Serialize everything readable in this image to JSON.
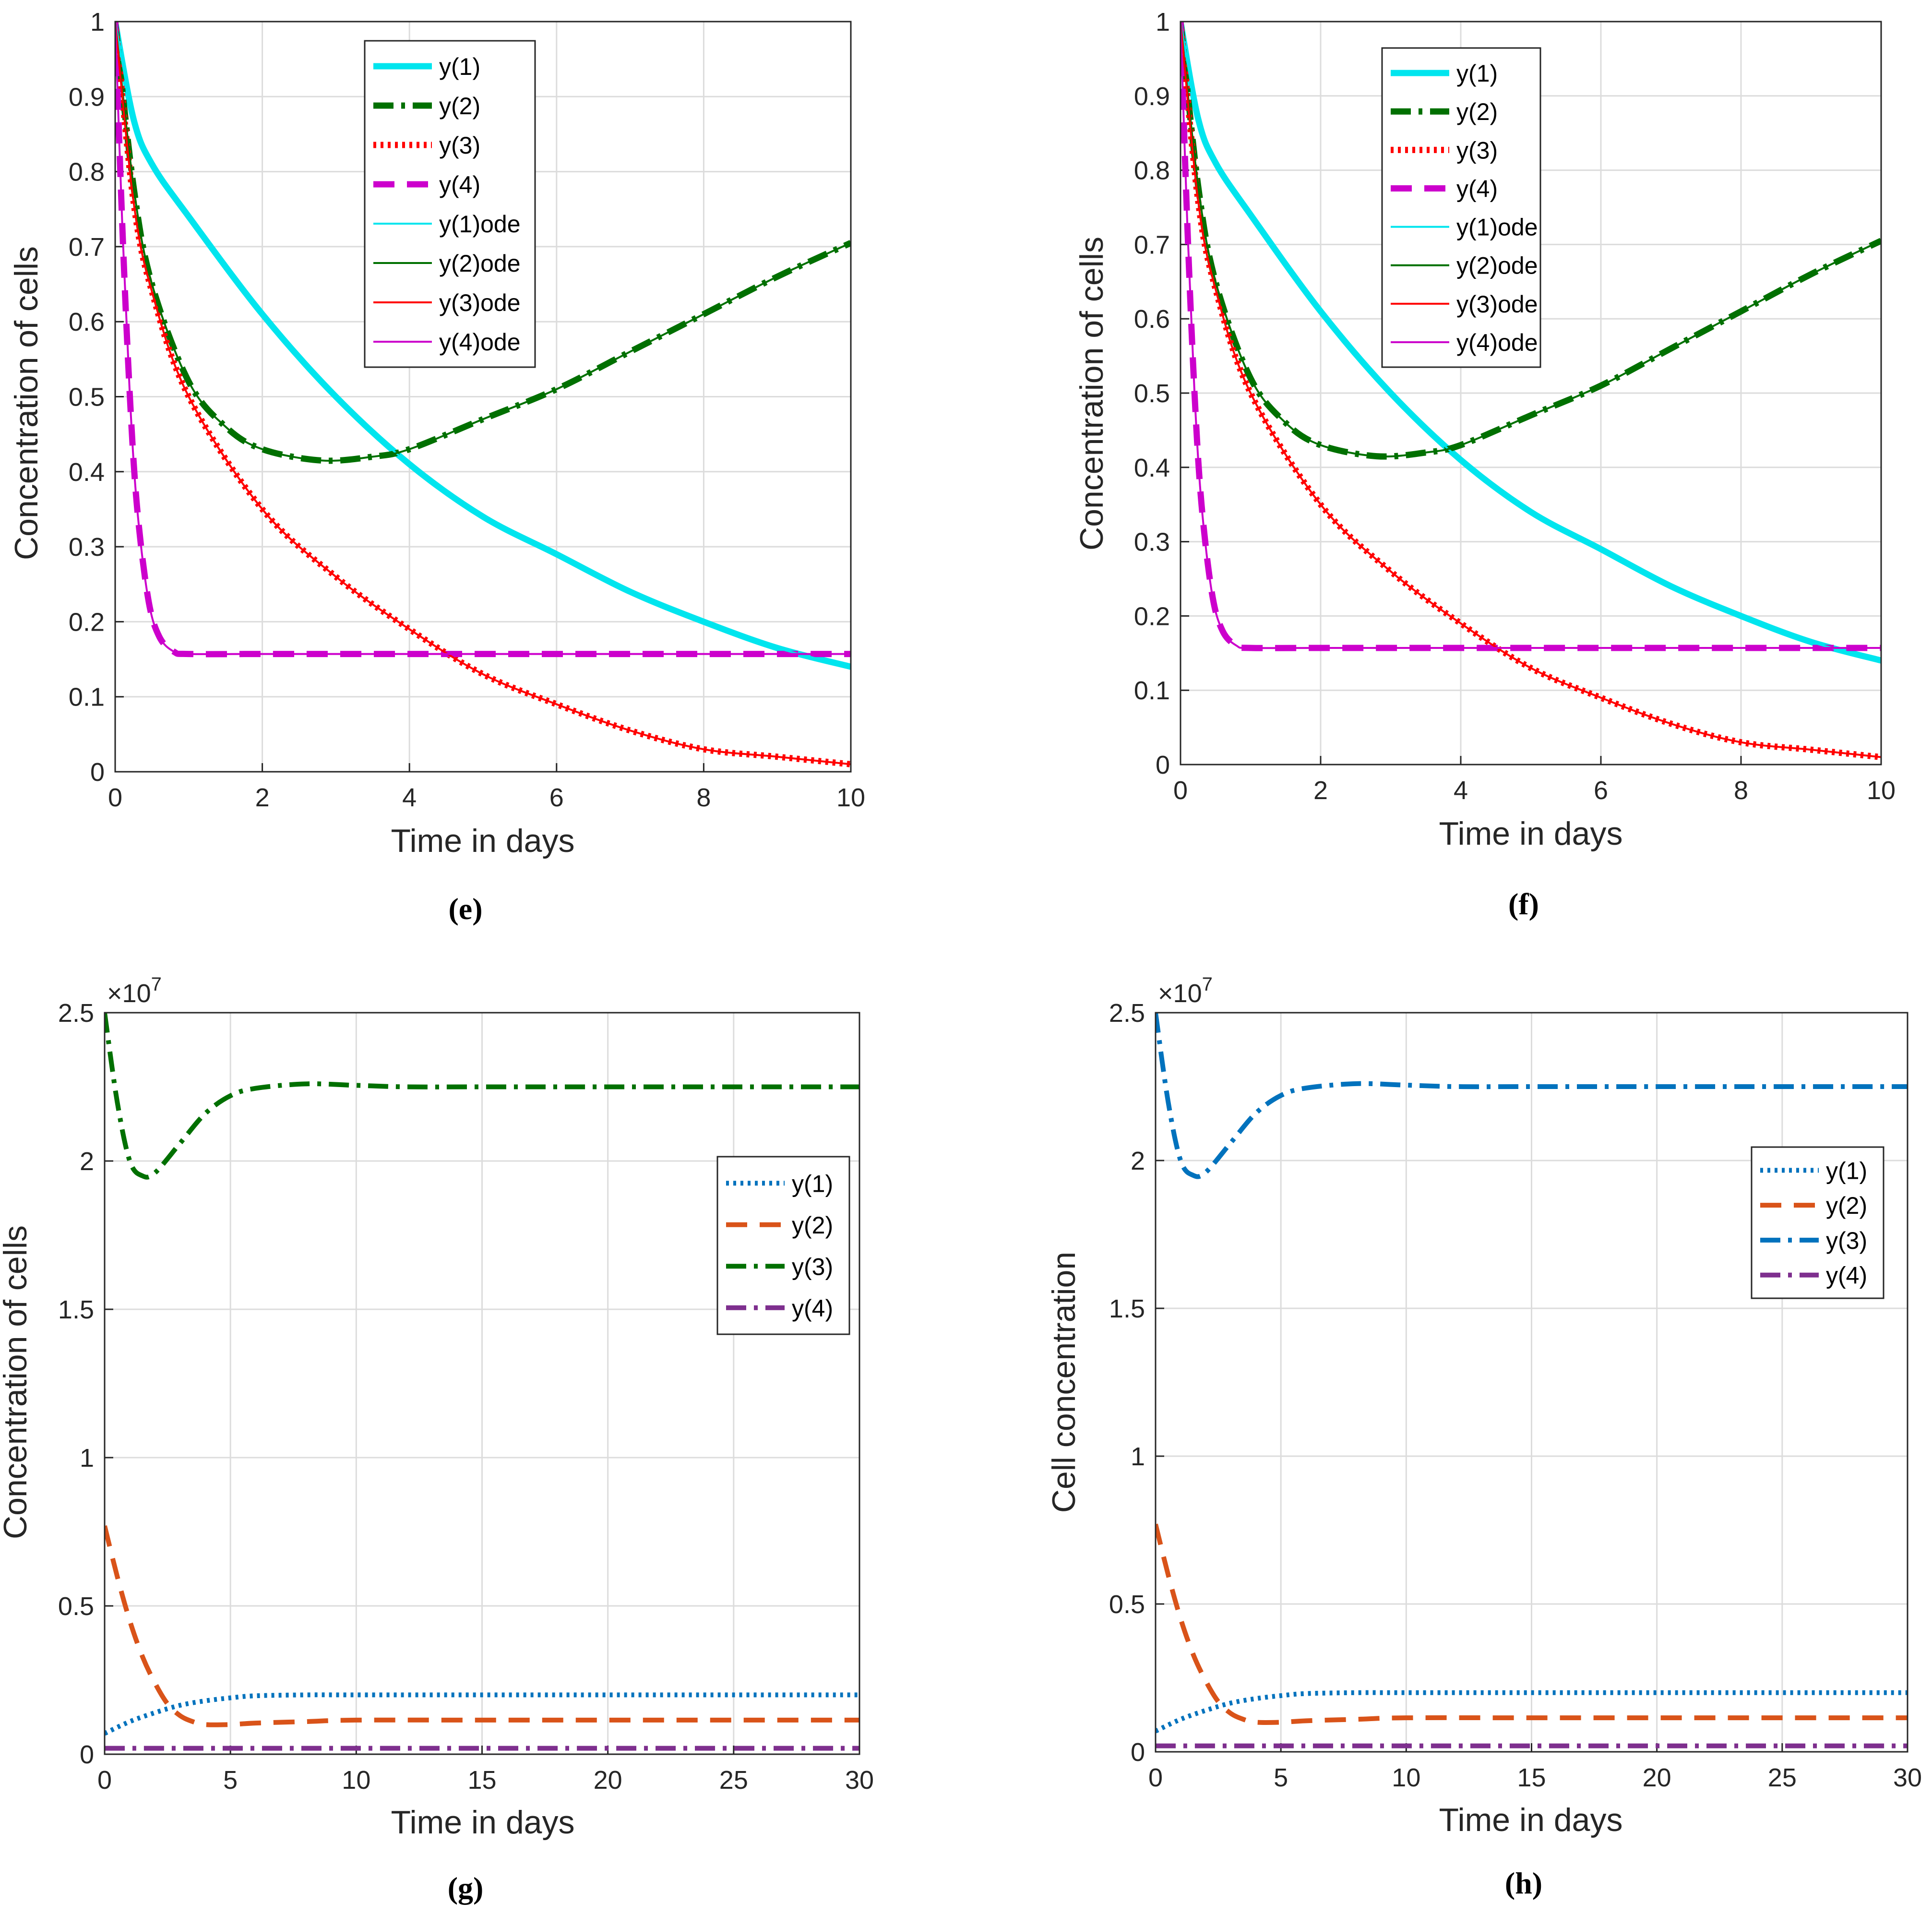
{
  "panels": [
    "(e)",
    "(f)",
    "(g)",
    "(h)"
  ],
  "chart_data": [
    {
      "id": "e",
      "type": "line",
      "xlabel": "Time in days",
      "ylabel": "Concentration of cells",
      "xlim": [
        0,
        10
      ],
      "ylim": [
        0,
        1
      ],
      "xticks": [
        "0",
        "2",
        "4",
        "6",
        "8",
        "10"
      ],
      "yticks": [
        "0",
        "0.1",
        "0.2",
        "0.3",
        "0.4",
        "0.5",
        "0.6",
        "0.7",
        "0.8",
        "0.9",
        "1"
      ],
      "grid": true,
      "legend_position": "top-center",
      "legend": [
        "y(1)",
        "y(2)",
        "y(3)",
        "y(4)",
        "y(1)ode",
        "y(2)ode",
        "y(3)ode",
        "y(4)ode"
      ],
      "series": [
        {
          "name": "y(1)",
          "color": "#00e5ee",
          "style": "solid-thick",
          "x": [
            0,
            0.25,
            0.5,
            1,
            2,
            3,
            4,
            5,
            6,
            7,
            8,
            9,
            10
          ],
          "y": [
            1.0,
            0.87,
            0.81,
            0.74,
            0.61,
            0.5,
            0.41,
            0.34,
            0.29,
            0.24,
            0.2,
            0.165,
            0.14
          ]
        },
        {
          "name": "y(2)",
          "color": "#007000",
          "style": "dashdot-thick",
          "x": [
            0,
            0.25,
            0.5,
            1,
            1.5,
            2,
            2.8,
            3.5,
            4,
            5,
            6,
            7,
            8,
            9,
            10
          ],
          "y": [
            1.0,
            0.78,
            0.65,
            0.52,
            0.46,
            0.43,
            0.415,
            0.42,
            0.43,
            0.47,
            0.51,
            0.56,
            0.61,
            0.66,
            0.705
          ]
        },
        {
          "name": "y(3)",
          "color": "#ff0000",
          "style": "dotted-thick",
          "x": [
            0,
            0.25,
            0.5,
            1,
            2,
            3,
            4,
            5,
            6,
            7,
            8,
            9,
            10
          ],
          "y": [
            1.0,
            0.76,
            0.64,
            0.5,
            0.35,
            0.26,
            0.19,
            0.13,
            0.09,
            0.055,
            0.03,
            0.02,
            0.01
          ]
        },
        {
          "name": "y(4)",
          "color": "#cc00cc",
          "style": "dashed-thick",
          "x": [
            0,
            0.1,
            0.2,
            0.3,
            0.45,
            0.6,
            0.8,
            1,
            2,
            4,
            6,
            8,
            10
          ],
          "y": [
            1.0,
            0.72,
            0.5,
            0.35,
            0.23,
            0.18,
            0.16,
            0.157,
            0.157,
            0.157,
            0.157,
            0.157,
            0.157
          ]
        },
        {
          "name": "y(1)ode",
          "color": "#00e5ee",
          "style": "solid-thin",
          "same_as": "y(1)"
        },
        {
          "name": "y(2)ode",
          "color": "#007000",
          "style": "solid-thin",
          "same_as": "y(2)"
        },
        {
          "name": "y(3)ode",
          "color": "#ff0000",
          "style": "solid-thin",
          "same_as": "y(3)"
        },
        {
          "name": "y(4)ode",
          "color": "#cc00cc",
          "style": "solid-thin",
          "same_as": "y(4)"
        }
      ]
    },
    {
      "id": "f",
      "type": "line",
      "xlabel": "Time in days",
      "ylabel": "Concentration of cells",
      "xlim": [
        0,
        10
      ],
      "ylim": [
        0,
        1
      ],
      "xticks": [
        "0",
        "2",
        "4",
        "6",
        "8",
        "10"
      ],
      "yticks": [
        "0",
        "0.1",
        "0.2",
        "0.3",
        "0.4",
        "0.5",
        "0.6",
        "0.7",
        "0.8",
        "0.9",
        "1"
      ],
      "grid": true,
      "legend_position": "top-left",
      "legend": [
        "y(1)",
        "y(2)",
        "y(3)",
        "y(4)",
        "y(1)ode",
        "y(2)ode",
        "y(3)ode",
        "y(4)ode"
      ],
      "series": [
        {
          "name": "y(1)",
          "color": "#00e5ee",
          "style": "solid-thick",
          "x": [
            0,
            0.25,
            0.5,
            1,
            2,
            3,
            4,
            5,
            6,
            7,
            8,
            9,
            10
          ],
          "y": [
            1.0,
            0.87,
            0.81,
            0.74,
            0.61,
            0.5,
            0.41,
            0.34,
            0.29,
            0.24,
            0.2,
            0.165,
            0.14
          ]
        },
        {
          "name": "y(2)",
          "color": "#007000",
          "style": "dashdot-thick",
          "x": [
            0,
            0.25,
            0.5,
            1,
            1.5,
            2,
            2.8,
            3.5,
            4,
            5,
            6,
            7,
            8,
            9,
            10
          ],
          "y": [
            1.0,
            0.78,
            0.65,
            0.52,
            0.46,
            0.43,
            0.415,
            0.42,
            0.43,
            0.47,
            0.51,
            0.56,
            0.61,
            0.66,
            0.705
          ]
        },
        {
          "name": "y(3)",
          "color": "#ff0000",
          "style": "dotted-thick",
          "x": [
            0,
            0.25,
            0.5,
            1,
            2,
            3,
            4,
            5,
            6,
            7,
            8,
            9,
            10
          ],
          "y": [
            1.0,
            0.76,
            0.64,
            0.5,
            0.35,
            0.26,
            0.19,
            0.13,
            0.09,
            0.055,
            0.03,
            0.02,
            0.01
          ]
        },
        {
          "name": "y(4)",
          "color": "#cc00cc",
          "style": "dashed-thick",
          "x": [
            0,
            0.1,
            0.2,
            0.3,
            0.45,
            0.6,
            0.8,
            1,
            2,
            4,
            6,
            8,
            10
          ],
          "y": [
            1.0,
            0.72,
            0.5,
            0.35,
            0.23,
            0.18,
            0.16,
            0.157,
            0.157,
            0.157,
            0.157,
            0.157,
            0.157
          ]
        },
        {
          "name": "y(1)ode",
          "color": "#00e5ee",
          "style": "solid-thin",
          "same_as": "y(1)"
        },
        {
          "name": "y(2)ode",
          "color": "#007000",
          "style": "solid-thin",
          "same_as": "y(2)"
        },
        {
          "name": "y(3)ode",
          "color": "#ff0000",
          "style": "solid-thin",
          "same_as": "y(3)"
        },
        {
          "name": "y(4)ode",
          "color": "#cc00cc",
          "style": "solid-thin",
          "same_as": "y(4)"
        }
      ]
    },
    {
      "id": "g",
      "type": "line",
      "xlabel": "Time in days",
      "ylabel": "Concentration of cells",
      "exponent_label": "×10",
      "exponent_power": "7",
      "xlim": [
        0,
        30
      ],
      "ylim": [
        0,
        2.5
      ],
      "xticks": [
        "0",
        "5",
        "10",
        "15",
        "20",
        "25",
        "30"
      ],
      "yticks": [
        "0",
        "0.5",
        "1",
        "1.5",
        "2",
        "2.5"
      ],
      "grid": true,
      "legend_position": "right-middle",
      "legend": [
        "y(1)",
        "y(2)",
        "y(3)",
        "y(4)"
      ],
      "series": [
        {
          "name": "y(1)",
          "color": "#0072bd",
          "style": "dotted",
          "x": [
            0,
            1,
            2,
            3,
            4,
            5,
            6,
            8,
            10,
            15,
            20,
            25,
            30
          ],
          "y": [
            0.07,
            0.11,
            0.14,
            0.165,
            0.18,
            0.19,
            0.197,
            0.2,
            0.2,
            0.2,
            0.2,
            0.2,
            0.2
          ]
        },
        {
          "name": "y(2)",
          "color": "#d95319",
          "style": "dashed",
          "x": [
            0,
            0.5,
            1,
            1.5,
            2,
            2.5,
            3,
            3.5,
            4,
            5,
            6,
            8,
            10,
            15,
            20,
            25,
            30
          ],
          "y": [
            0.77,
            0.6,
            0.45,
            0.33,
            0.24,
            0.17,
            0.13,
            0.11,
            0.1,
            0.1,
            0.105,
            0.11,
            0.115,
            0.115,
            0.115,
            0.115,
            0.115
          ]
        },
        {
          "name": "y(3)",
          "color": "#007000",
          "style": "dashdot",
          "x": [
            0,
            0.5,
            1,
            1.5,
            2,
            3,
            4,
            5,
            6,
            8,
            10,
            12,
            15,
            20,
            25,
            30
          ],
          "y": [
            2.5,
            2.2,
            2.0,
            1.95,
            1.96,
            2.06,
            2.16,
            2.22,
            2.245,
            2.26,
            2.255,
            2.25,
            2.25,
            2.25,
            2.25,
            2.25
          ]
        },
        {
          "name": "y(4)",
          "color": "#7e2f8e",
          "style": "dashdot",
          "x": [
            0,
            30
          ],
          "y": [
            0.02,
            0.02
          ]
        }
      ]
    },
    {
      "id": "h",
      "type": "line",
      "xlabel": "Time in days",
      "ylabel": "Cell concentration",
      "exponent_label": "×10",
      "exponent_power": "7",
      "xlim": [
        0,
        30
      ],
      "ylim": [
        0,
        2.5
      ],
      "xticks": [
        "0",
        "5",
        "10",
        "15",
        "20",
        "25",
        "30"
      ],
      "yticks": [
        "0",
        "0.5",
        "1",
        "1.5",
        "2",
        "2.5"
      ],
      "grid": true,
      "legend_position": "right-upper",
      "legend": [
        "y(1)",
        "y(2)",
        "y(3)",
        "y(4)"
      ],
      "series": [
        {
          "name": "y(1)",
          "color": "#0072bd",
          "style": "dotted",
          "x": [
            0,
            1,
            2,
            3,
            4,
            5,
            6,
            8,
            10,
            15,
            20,
            25,
            30
          ],
          "y": [
            0.07,
            0.11,
            0.14,
            0.165,
            0.18,
            0.19,
            0.197,
            0.2,
            0.2,
            0.2,
            0.2,
            0.2,
            0.2
          ]
        },
        {
          "name": "y(2)",
          "color": "#d95319",
          "style": "dashed",
          "x": [
            0,
            0.5,
            1,
            1.5,
            2,
            2.5,
            3,
            3.5,
            4,
            5,
            6,
            8,
            10,
            15,
            20,
            25,
            30
          ],
          "y": [
            0.77,
            0.6,
            0.45,
            0.33,
            0.24,
            0.17,
            0.13,
            0.11,
            0.1,
            0.1,
            0.105,
            0.11,
            0.115,
            0.115,
            0.115,
            0.115,
            0.115
          ]
        },
        {
          "name": "y(3)",
          "color": "#0072bd",
          "style": "dashdot",
          "x": [
            0,
            0.5,
            1,
            1.5,
            2,
            3,
            4,
            5,
            6,
            8,
            10,
            12,
            15,
            20,
            25,
            30
          ],
          "y": [
            2.5,
            2.2,
            2.0,
            1.95,
            1.96,
            2.06,
            2.16,
            2.22,
            2.245,
            2.26,
            2.255,
            2.25,
            2.25,
            2.25,
            2.25,
            2.25
          ]
        },
        {
          "name": "y(4)",
          "color": "#7e2f8e",
          "style": "dashdot",
          "x": [
            0,
            30
          ],
          "y": [
            0.02,
            0.02
          ]
        }
      ]
    }
  ]
}
